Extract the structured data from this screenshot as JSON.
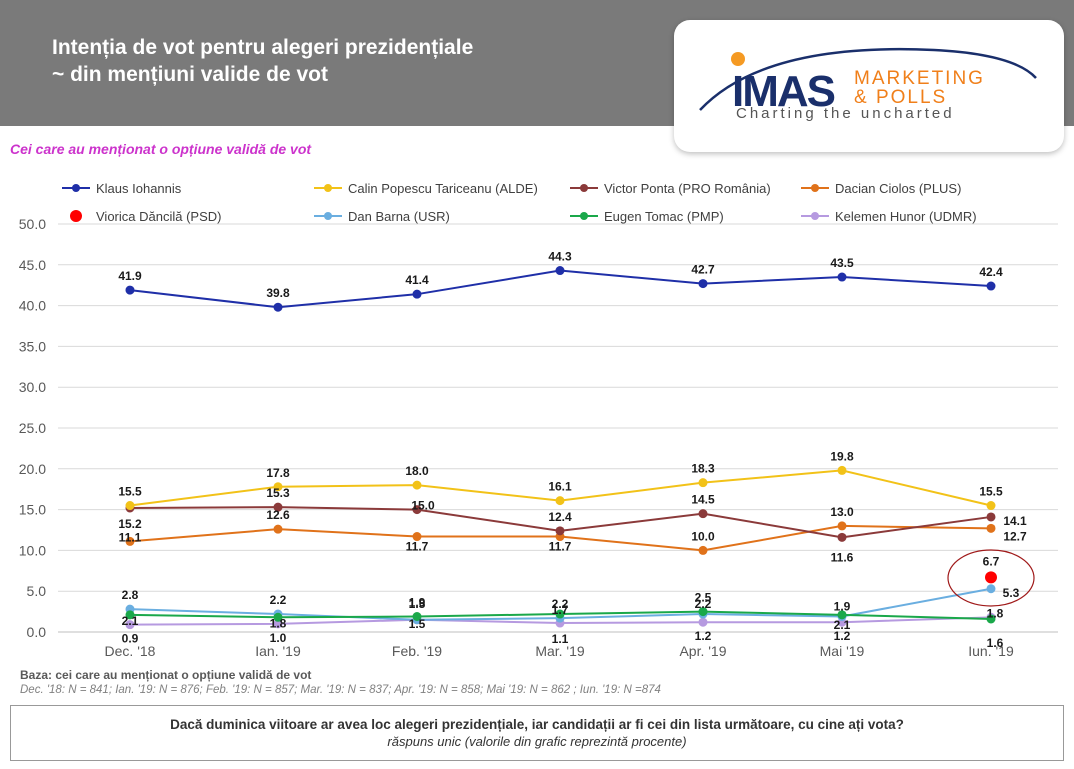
{
  "header": {
    "title_line1": "Intenția de vot pentru alegeri prezidențiale",
    "title_line2": "~ din mențiuni valide de vot"
  },
  "logo": {
    "brand": "IMAS",
    "marketing": "MARKETING",
    "polls": "& POLLS",
    "tagline": "Charting the uncharted"
  },
  "subtitle": "Cei care au menționat o opțiune validă de vot",
  "chart_data": {
    "type": "line",
    "categories": [
      "Dec. '18",
      "Ian. '19",
      "Feb. '19",
      "Mar. '19",
      "Apr. '19",
      "Mai '19",
      "Iun. '19"
    ],
    "ylim": [
      0,
      50
    ],
    "yticks": [
      "0.0",
      "5.0",
      "10.0",
      "15.0",
      "20.0",
      "25.0",
      "30.0",
      "35.0",
      "40.0",
      "45.0",
      "50.0"
    ],
    "grid": true,
    "legend": "top",
    "series": [
      {
        "name": "Klaus Iohannis",
        "color": "#1f2fa8",
        "values": [
          41.9,
          39.8,
          41.4,
          44.3,
          42.7,
          43.5,
          42.4
        ]
      },
      {
        "name": "Calin Popescu Tariceanu (ALDE)",
        "color": "#f2c218",
        "values": [
          15.5,
          17.8,
          18.0,
          16.1,
          18.3,
          19.8,
          15.5
        ]
      },
      {
        "name": "Victor Ponta (PRO România)",
        "color": "#8b3a3a",
        "values": [
          15.2,
          15.3,
          15.0,
          12.4,
          14.5,
          11.6,
          14.1
        ]
      },
      {
        "name": "Dacian Ciolos (PLUS)",
        "color": "#e0721a",
        "values": [
          11.1,
          12.6,
          11.7,
          11.7,
          10.0,
          13.0,
          12.7
        ]
      },
      {
        "name": "Viorica Dăncilă (PSD)",
        "color": "#ff0000",
        "values": [
          null,
          null,
          null,
          null,
          null,
          null,
          6.7
        ]
      },
      {
        "name": "Dan Barna (USR)",
        "color": "#6aaee0",
        "values": [
          2.8,
          2.2,
          1.5,
          1.7,
          2.2,
          1.9,
          5.3
        ]
      },
      {
        "name": "Eugen Tomac (PMP)",
        "color": "#1aa84a",
        "values": [
          2.1,
          1.8,
          1.9,
          2.2,
          2.5,
          2.1,
          1.6
        ]
      },
      {
        "name": "Kelemen Hunor (UDMR)",
        "color": "#b69ae0",
        "values": [
          0.9,
          1.0,
          1.5,
          1.1,
          1.2,
          1.2,
          1.8
        ]
      }
    ]
  },
  "footer": {
    "base_title": "Baza: cei care au menționat o opțiune validă de vot",
    "base_detail": "Dec. '18: N = 841; Ian. '19: N = 876; Feb. '19: N = 857; Mar. '19: N = 837; Apr. '19: N = 858; Mai '19: N = 862 ; Iun. '19: N =874",
    "question": "Dacă duminica viitoare ar avea loc alegeri prezidențiale, iar candidații ar fi cei din lista următoare, cu cine ați vota?",
    "note": "răspuns unic (valorile din grafic reprezintă procente)"
  }
}
